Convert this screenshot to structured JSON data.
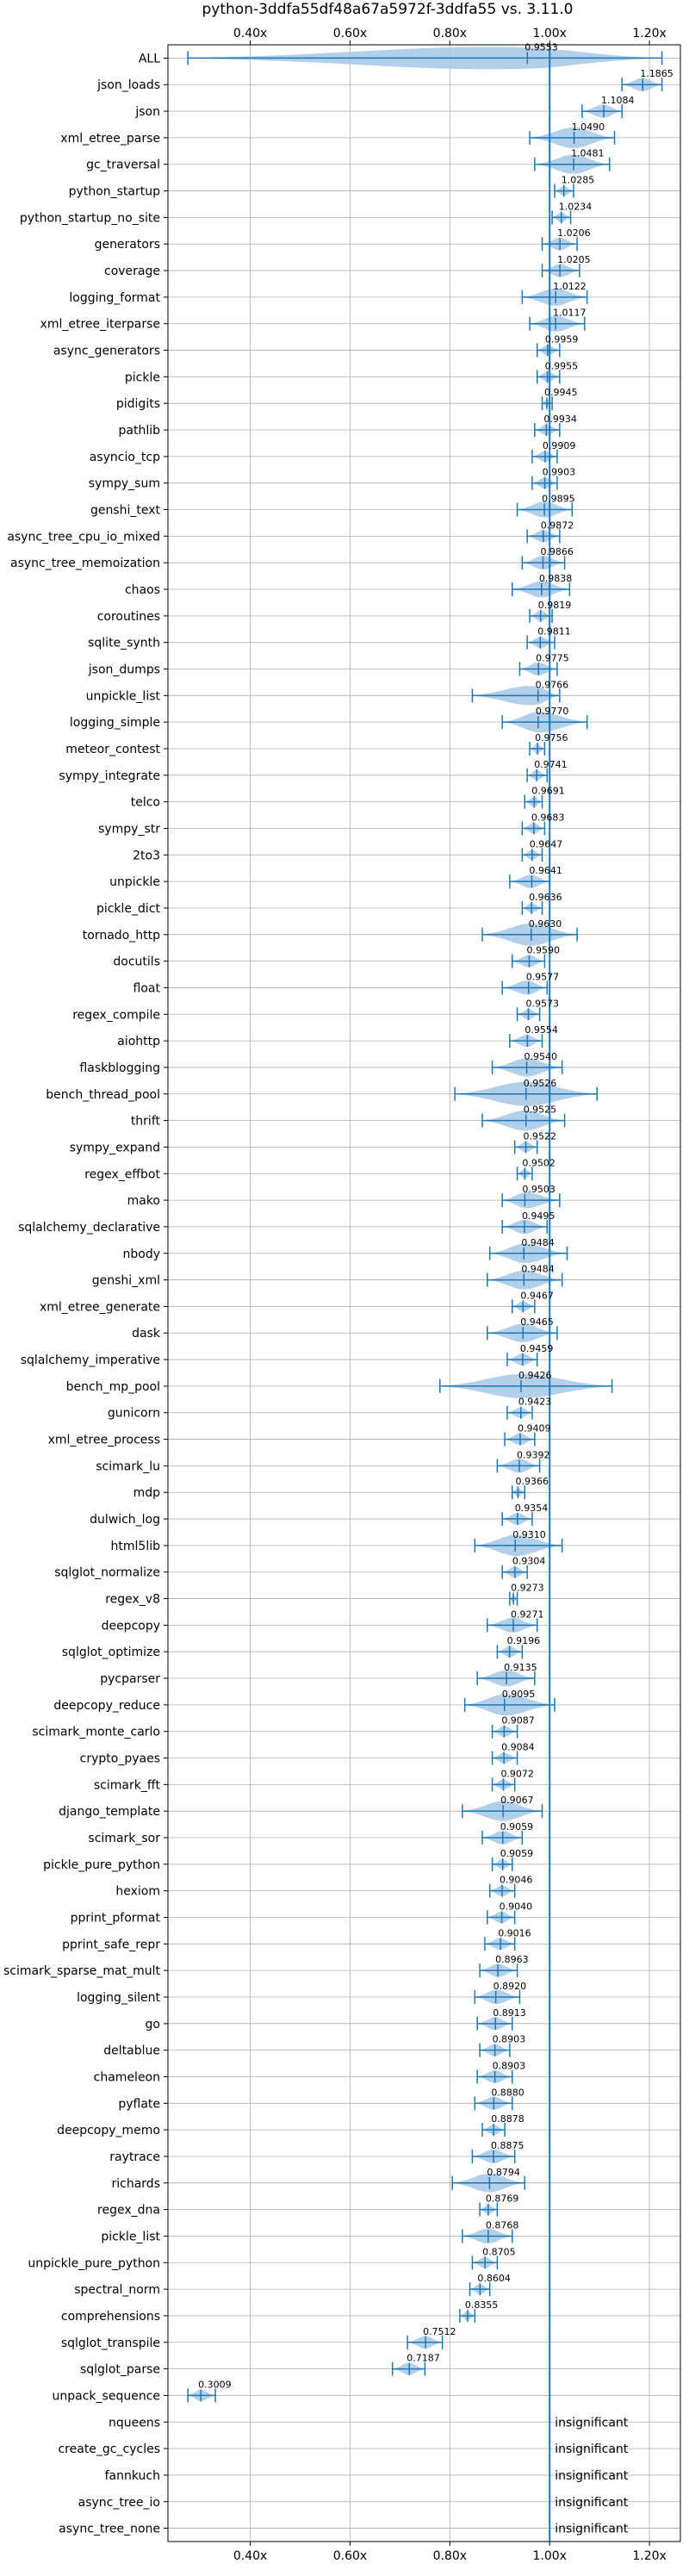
{
  "chart_data": {
    "type": "violin",
    "title": "python-3ddfa55df48a67a5972f-3ddfa55 vs. 3.11.0",
    "xlabel": "",
    "ylabel": "",
    "xlim": [
      0.235,
      1.262
    ],
    "xticks": [
      0.4,
      0.6,
      0.8,
      1.0,
      1.2
    ],
    "xtick_labels": [
      "0.40x",
      "0.60x",
      "0.80x",
      "1.00x",
      "1.20x"
    ],
    "reference_line": 1.0,
    "grid": true,
    "accent_color": "#1f77b4",
    "violin_color": "#a6c8e6",
    "categories": [
      {
        "name": "ALL",
        "value": 0.9553,
        "label": "0.9553",
        "low": 0.275,
        "high": 1.225
      },
      {
        "name": "json_loads",
        "value": 1.1865,
        "label": "1.1865",
        "low": 1.145,
        "high": 1.225
      },
      {
        "name": "json",
        "value": 1.1084,
        "label": "1.1084",
        "low": 1.065,
        "high": 1.145
      },
      {
        "name": "xml_etree_parse",
        "value": 1.049,
        "label": "1.0490",
        "low": 0.96,
        "high": 1.13
      },
      {
        "name": "gc_traversal",
        "value": 1.0481,
        "label": "1.0481",
        "low": 0.97,
        "high": 1.12
      },
      {
        "name": "python_startup",
        "value": 1.0285,
        "label": "1.0285",
        "low": 1.01,
        "high": 1.048
      },
      {
        "name": "python_startup_no_site",
        "value": 1.0234,
        "label": "1.0234",
        "low": 1.005,
        "high": 1.042
      },
      {
        "name": "generators",
        "value": 1.0206,
        "label": "1.0206",
        "low": 0.985,
        "high": 1.055
      },
      {
        "name": "coverage",
        "value": 1.0205,
        "label": "1.0205",
        "low": 0.985,
        "high": 1.06
      },
      {
        "name": "logging_format",
        "value": 1.0122,
        "label": "1.0122",
        "low": 0.945,
        "high": 1.075
      },
      {
        "name": "xml_etree_iterparse",
        "value": 1.0117,
        "label": "1.0117",
        "low": 0.96,
        "high": 1.07
      },
      {
        "name": "async_generators",
        "value": 0.9959,
        "label": "0.9959",
        "low": 0.975,
        "high": 1.02
      },
      {
        "name": "pickle",
        "value": 0.9955,
        "label": "0.9955",
        "low": 0.975,
        "high": 1.02
      },
      {
        "name": "pidigits",
        "value": 0.9945,
        "label": "0.9945",
        "low": 0.985,
        "high": 1.005
      },
      {
        "name": "pathlib",
        "value": 0.9934,
        "label": "0.9934",
        "low": 0.97,
        "high": 1.02
      },
      {
        "name": "asyncio_tcp",
        "value": 0.9909,
        "label": "0.9909",
        "low": 0.965,
        "high": 1.015
      },
      {
        "name": "sympy_sum",
        "value": 0.9903,
        "label": "0.9903",
        "low": 0.965,
        "high": 1.015
      },
      {
        "name": "genshi_text",
        "value": 0.9895,
        "label": "0.9895",
        "low": 0.935,
        "high": 1.045
      },
      {
        "name": "async_tree_cpu_io_mixed",
        "value": 0.9872,
        "label": "0.9872",
        "low": 0.955,
        "high": 1.02
      },
      {
        "name": "async_tree_memoization",
        "value": 0.9866,
        "label": "0.9866",
        "low": 0.945,
        "high": 1.03
      },
      {
        "name": "chaos",
        "value": 0.9838,
        "label": "0.9838",
        "low": 0.925,
        "high": 1.04
      },
      {
        "name": "coroutines",
        "value": 0.9819,
        "label": "0.9819",
        "low": 0.96,
        "high": 1.005
      },
      {
        "name": "sqlite_synth",
        "value": 0.9811,
        "label": "0.9811",
        "low": 0.955,
        "high": 1.01
      },
      {
        "name": "json_dumps",
        "value": 0.9775,
        "label": "0.9775",
        "low": 0.94,
        "high": 1.015
      },
      {
        "name": "unpickle_list",
        "value": 0.9766,
        "label": "0.9766",
        "low": 0.845,
        "high": 1.02
      },
      {
        "name": "logging_simple",
        "value": 0.977,
        "label": "0.9770",
        "low": 0.905,
        "high": 1.075
      },
      {
        "name": "meteor_contest",
        "value": 0.9756,
        "label": "0.9756",
        "low": 0.96,
        "high": 0.99
      },
      {
        "name": "sympy_integrate",
        "value": 0.9741,
        "label": "0.9741",
        "low": 0.955,
        "high": 0.995
      },
      {
        "name": "telco",
        "value": 0.9691,
        "label": "0.9691",
        "low": 0.95,
        "high": 0.985
      },
      {
        "name": "sympy_str",
        "value": 0.9683,
        "label": "0.9683",
        "low": 0.945,
        "high": 0.99
      },
      {
        "name": "2to3",
        "value": 0.9647,
        "label": "0.9647",
        "low": 0.945,
        "high": 0.985
      },
      {
        "name": "unpickle",
        "value": 0.9641,
        "label": "0.9641",
        "low": 0.92,
        "high": 1.0
      },
      {
        "name": "pickle_dict",
        "value": 0.9636,
        "label": "0.9636",
        "low": 0.945,
        "high": 0.985
      },
      {
        "name": "tornado_http",
        "value": 0.963,
        "label": "0.9630",
        "low": 0.865,
        "high": 1.055
      },
      {
        "name": "docutils",
        "value": 0.959,
        "label": "0.9590",
        "low": 0.925,
        "high": 0.99
      },
      {
        "name": "float",
        "value": 0.9577,
        "label": "0.9577",
        "low": 0.905,
        "high": 0.995
      },
      {
        "name": "regex_compile",
        "value": 0.9573,
        "label": "0.9573",
        "low": 0.935,
        "high": 0.98
      },
      {
        "name": "aiohttp",
        "value": 0.9554,
        "label": "0.9554",
        "low": 0.92,
        "high": 0.985
      },
      {
        "name": "flaskblogging",
        "value": 0.954,
        "label": "0.9540",
        "low": 0.885,
        "high": 1.025
      },
      {
        "name": "bench_thread_pool",
        "value": 0.9526,
        "label": "0.9526",
        "low": 0.81,
        "high": 1.095
      },
      {
        "name": "thrift",
        "value": 0.9525,
        "label": "0.9525",
        "low": 0.865,
        "high": 1.03
      },
      {
        "name": "sympy_expand",
        "value": 0.9522,
        "label": "0.9522",
        "low": 0.93,
        "high": 0.975
      },
      {
        "name": "regex_effbot",
        "value": 0.9502,
        "label": "0.9502",
        "low": 0.935,
        "high": 0.965
      },
      {
        "name": "mako",
        "value": 0.9503,
        "label": "0.9503",
        "low": 0.905,
        "high": 1.02
      },
      {
        "name": "sqlalchemy_declarative",
        "value": 0.9495,
        "label": "0.9495",
        "low": 0.905,
        "high": 0.995
      },
      {
        "name": "nbody",
        "value": 0.9484,
        "label": "0.9484",
        "low": 0.88,
        "high": 1.035
      },
      {
        "name": "genshi_xml",
        "value": 0.9484,
        "label": "0.9484",
        "low": 0.875,
        "high": 1.025
      },
      {
        "name": "xml_etree_generate",
        "value": 0.9467,
        "label": "0.9467",
        "low": 0.925,
        "high": 0.97
      },
      {
        "name": "dask",
        "value": 0.9465,
        "label": "0.9465",
        "low": 0.875,
        "high": 1.015
      },
      {
        "name": "sqlalchemy_imperative",
        "value": 0.9459,
        "label": "0.9459",
        "low": 0.915,
        "high": 0.975
      },
      {
        "name": "bench_mp_pool",
        "value": 0.9426,
        "label": "0.9426",
        "low": 0.78,
        "high": 1.125
      },
      {
        "name": "gunicorn",
        "value": 0.9423,
        "label": "0.9423",
        "low": 0.915,
        "high": 0.965
      },
      {
        "name": "xml_etree_process",
        "value": 0.9409,
        "label": "0.9409",
        "low": 0.91,
        "high": 0.97
      },
      {
        "name": "scimark_lu",
        "value": 0.9392,
        "label": "0.9392",
        "low": 0.895,
        "high": 0.98
      },
      {
        "name": "mdp",
        "value": 0.9366,
        "label": "0.9366",
        "low": 0.925,
        "high": 0.95
      },
      {
        "name": "dulwich_log",
        "value": 0.9354,
        "label": "0.9354",
        "low": 0.905,
        "high": 0.965
      },
      {
        "name": "html5lib",
        "value": 0.931,
        "label": "0.9310",
        "low": 0.85,
        "high": 1.025
      },
      {
        "name": "sqlglot_normalize",
        "value": 0.9304,
        "label": "0.9304",
        "low": 0.905,
        "high": 0.955
      },
      {
        "name": "regex_v8",
        "value": 0.9273,
        "label": "0.9273",
        "low": 0.92,
        "high": 0.935
      },
      {
        "name": "deepcopy",
        "value": 0.9271,
        "label": "0.9271",
        "low": 0.875,
        "high": 0.975
      },
      {
        "name": "sqlglot_optimize",
        "value": 0.9196,
        "label": "0.9196",
        "low": 0.895,
        "high": 0.945
      },
      {
        "name": "pycparser",
        "value": 0.9135,
        "label": "0.9135",
        "low": 0.855,
        "high": 0.97
      },
      {
        "name": "deepcopy_reduce",
        "value": 0.9095,
        "label": "0.9095",
        "low": 0.83,
        "high": 1.01
      },
      {
        "name": "scimark_monte_carlo",
        "value": 0.9087,
        "label": "0.9087",
        "low": 0.885,
        "high": 0.935
      },
      {
        "name": "crypto_pyaes",
        "value": 0.9084,
        "label": "0.9084",
        "low": 0.885,
        "high": 0.935
      },
      {
        "name": "scimark_fft",
        "value": 0.9072,
        "label": "0.9072",
        "low": 0.885,
        "high": 0.93
      },
      {
        "name": "django_template",
        "value": 0.9067,
        "label": "0.9067",
        "low": 0.825,
        "high": 0.985
      },
      {
        "name": "scimark_sor",
        "value": 0.9059,
        "label": "0.9059",
        "low": 0.865,
        "high": 0.945
      },
      {
        "name": "pickle_pure_python",
        "value": 0.9059,
        "label": "0.9059",
        "low": 0.885,
        "high": 0.925
      },
      {
        "name": "hexiom",
        "value": 0.9046,
        "label": "0.9046",
        "low": 0.88,
        "high": 0.93
      },
      {
        "name": "pprint_pformat",
        "value": 0.904,
        "label": "0.9040",
        "low": 0.875,
        "high": 0.93
      },
      {
        "name": "pprint_safe_repr",
        "value": 0.9016,
        "label": "0.9016",
        "low": 0.87,
        "high": 0.93
      },
      {
        "name": "scimark_sparse_mat_mult",
        "value": 0.8963,
        "label": "0.8963",
        "low": 0.86,
        "high": 0.935
      },
      {
        "name": "logging_silent",
        "value": 0.892,
        "label": "0.8920",
        "low": 0.85,
        "high": 0.94
      },
      {
        "name": "go",
        "value": 0.8913,
        "label": "0.8913",
        "low": 0.855,
        "high": 0.925
      },
      {
        "name": "deltablue",
        "value": 0.8903,
        "label": "0.8903",
        "low": 0.86,
        "high": 0.92
      },
      {
        "name": "chameleon",
        "value": 0.8903,
        "label": "0.8903",
        "low": 0.855,
        "high": 0.925
      },
      {
        "name": "pyflate",
        "value": 0.888,
        "label": "0.8880",
        "low": 0.85,
        "high": 0.925
      },
      {
        "name": "deepcopy_memo",
        "value": 0.8878,
        "label": "0.8878",
        "low": 0.865,
        "high": 0.91
      },
      {
        "name": "raytrace",
        "value": 0.8875,
        "label": "0.8875",
        "low": 0.845,
        "high": 0.93
      },
      {
        "name": "richards",
        "value": 0.8794,
        "label": "0.8794",
        "low": 0.805,
        "high": 0.95
      },
      {
        "name": "regex_dna",
        "value": 0.8769,
        "label": "0.8769",
        "low": 0.86,
        "high": 0.895
      },
      {
        "name": "pickle_list",
        "value": 0.8768,
        "label": "0.8768",
        "low": 0.825,
        "high": 0.925
      },
      {
        "name": "unpickle_pure_python",
        "value": 0.8705,
        "label": "0.8705",
        "low": 0.845,
        "high": 0.895
      },
      {
        "name": "spectral_norm",
        "value": 0.8604,
        "label": "0.8604",
        "low": 0.84,
        "high": 0.88
      },
      {
        "name": "comprehensions",
        "value": 0.8355,
        "label": "0.8355",
        "low": 0.82,
        "high": 0.85
      },
      {
        "name": "sqlglot_transpile",
        "value": 0.7512,
        "label": "0.7512",
        "low": 0.715,
        "high": 0.785
      },
      {
        "name": "sqlglot_parse",
        "value": 0.7187,
        "label": "0.7187",
        "low": 0.685,
        "high": 0.75
      },
      {
        "name": "unpack_sequence",
        "value": 0.3009,
        "label": "0.3009",
        "low": 0.275,
        "high": 0.33
      },
      {
        "name": "nqueens",
        "insignificant": true
      },
      {
        "name": "create_gc_cycles",
        "insignificant": true
      },
      {
        "name": "fannkuch",
        "insignificant": true
      },
      {
        "name": "async_tree_io",
        "insignificant": true
      },
      {
        "name": "async_tree_none",
        "insignificant": true
      }
    ],
    "insignificant_label": "insignificant"
  }
}
